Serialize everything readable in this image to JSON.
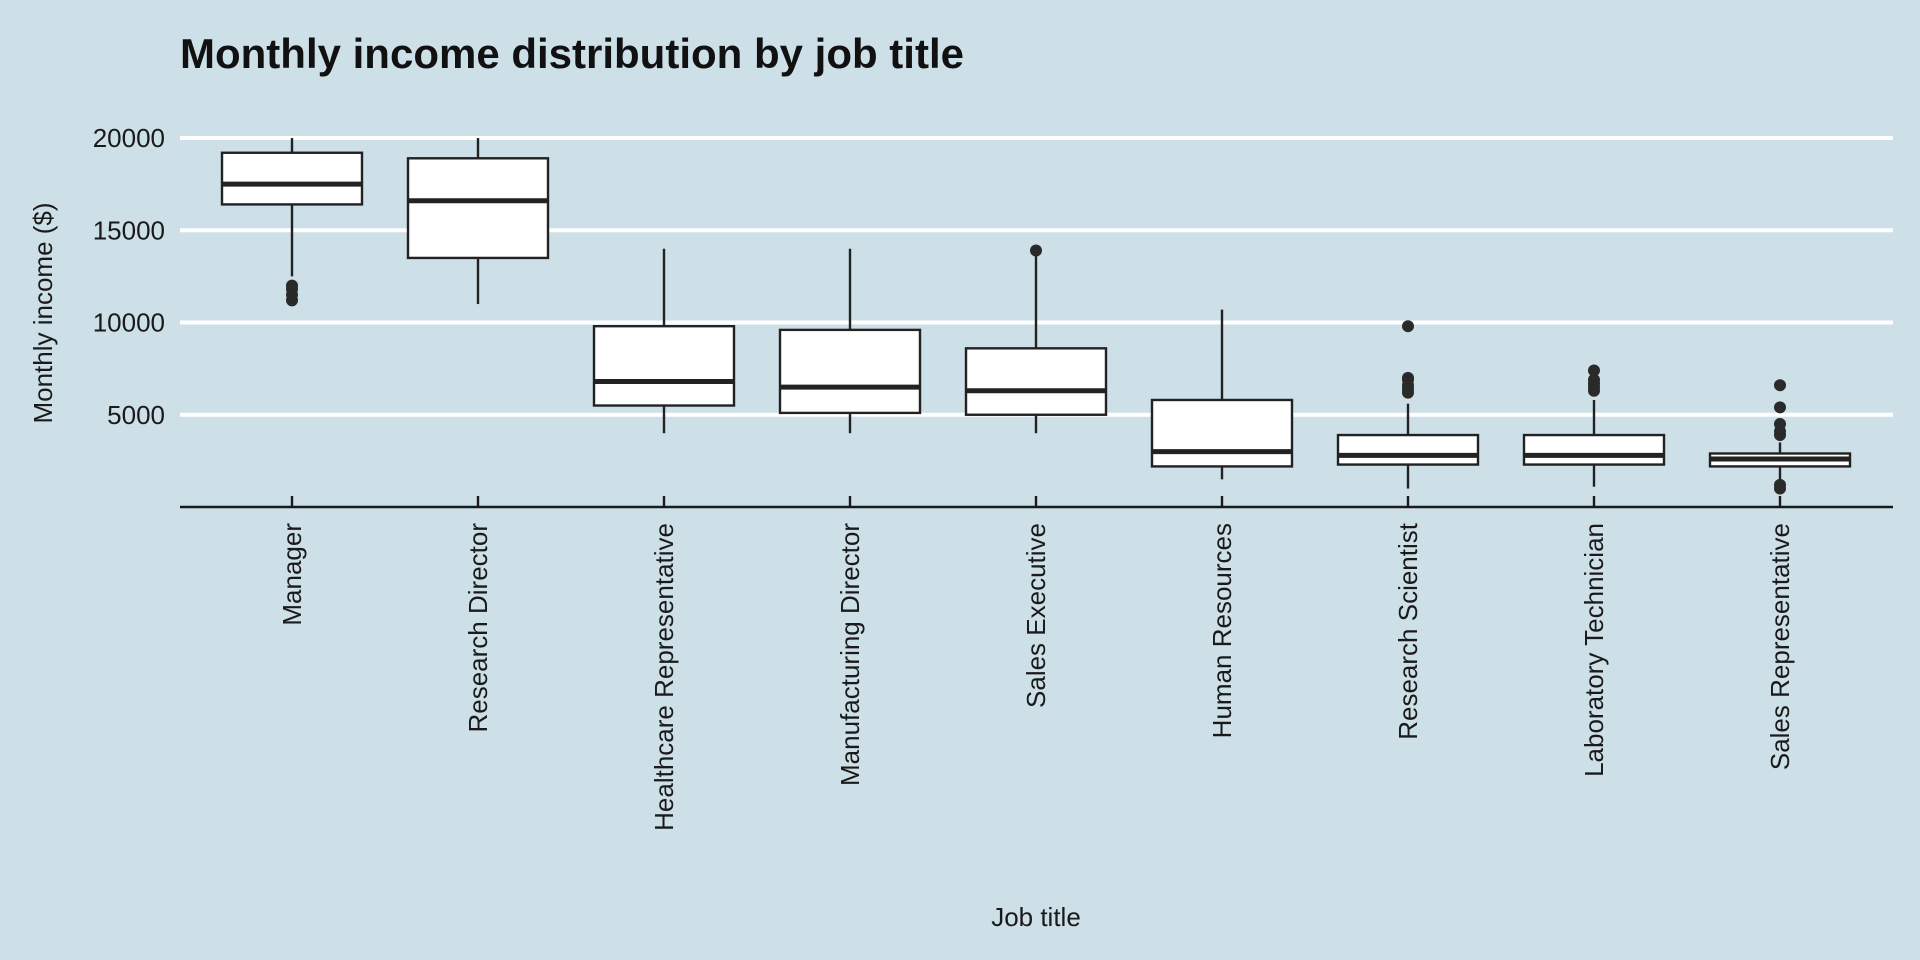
{
  "chart_data": {
    "type": "box",
    "title": "Monthly income distribution by job title",
    "xlabel": "Job title",
    "ylabel": "Monthly income ($)",
    "ylim": [
      0,
      20000
    ],
    "yticks": [
      5000,
      10000,
      15000,
      20000
    ],
    "grid": "horizontal",
    "categories": [
      "Manager",
      "Research Director",
      "Healthcare Representative",
      "Manufacturing Director",
      "Sales Executive",
      "Human Resources",
      "Research Scientist",
      "Laboratory Technician",
      "Sales Representative"
    ],
    "boxes": [
      {
        "min": 12500,
        "q1": 16400,
        "median": 17500,
        "q3": 19200,
        "max": 20000,
        "outliers": [
          11200,
          11500,
          11800,
          12000
        ]
      },
      {
        "min": 11000,
        "q1": 13500,
        "median": 16600,
        "q3": 18900,
        "max": 20000,
        "outliers": []
      },
      {
        "min": 4000,
        "q1": 5500,
        "median": 6800,
        "q3": 9800,
        "max": 14000,
        "outliers": []
      },
      {
        "min": 4000,
        "q1": 5100,
        "median": 6500,
        "q3": 9600,
        "max": 14000,
        "outliers": []
      },
      {
        "min": 4000,
        "q1": 5000,
        "median": 6300,
        "q3": 8600,
        "max": 13800,
        "outliers": [
          13900
        ]
      },
      {
        "min": 1500,
        "q1": 2200,
        "median": 3000,
        "q3": 5800,
        "max": 10700,
        "outliers": []
      },
      {
        "min": 1000,
        "q1": 2300,
        "median": 2800,
        "q3": 3900,
        "max": 5600,
        "outliers": [
          6200,
          6400,
          6600,
          6900,
          7000,
          9800
        ]
      },
      {
        "min": 1100,
        "q1": 2300,
        "median": 2800,
        "q3": 3900,
        "max": 5800,
        "outliers": [
          6300,
          6500,
          6700,
          6900,
          7400
        ]
      },
      {
        "min": 1300,
        "q1": 2200,
        "median": 2600,
        "q3": 2900,
        "max": 3500,
        "outliers": [
          1000,
          1200,
          3900,
          4100,
          4500,
          5400,
          6600
        ]
      }
    ]
  }
}
